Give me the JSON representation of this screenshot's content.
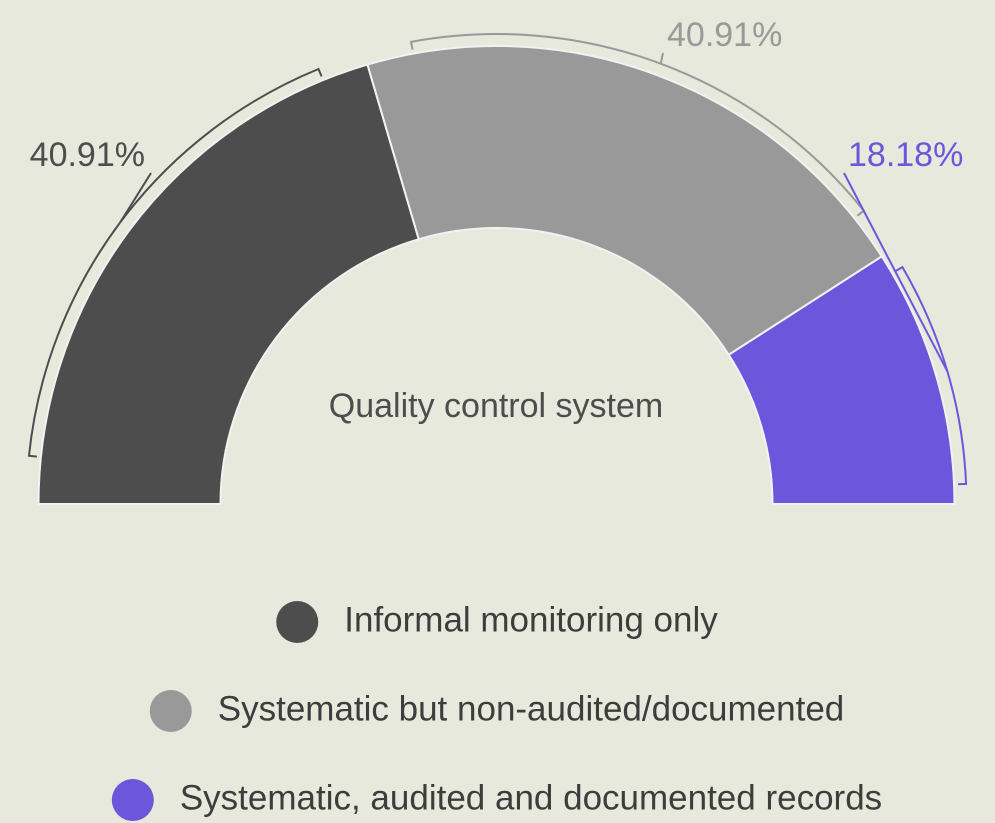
{
  "chart_data": {
    "type": "pie",
    "half": true,
    "title": "Quality control system",
    "categories": [
      "Informal monitoring only",
      "Systematic but non-audited/documented",
      "Systematic, audited and documented records"
    ],
    "values": [
      40.91,
      40.91,
      18.18
    ],
    "value_labels": [
      "40.91%",
      "40.91%",
      "18.18%"
    ],
    "colors": [
      "#4d4d4d",
      "#999999",
      "#6c56dc"
    ],
    "legend": "bottom"
  }
}
